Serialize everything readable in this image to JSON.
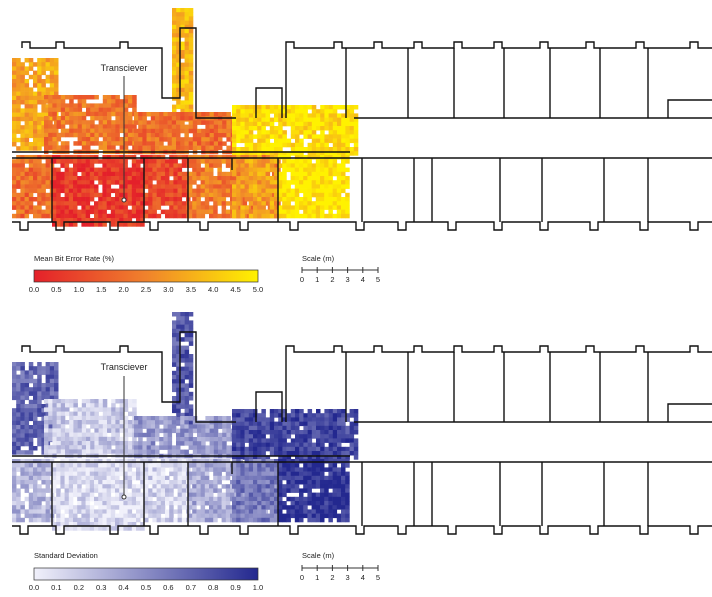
{
  "chart_data": [
    {
      "type": "heatmap",
      "annotation": "Transciever",
      "colorbar": {
        "title": "Mean Bit Error Rate (%)",
        "ticks": [
          "0.0",
          "0.5",
          "1.0",
          "1.5",
          "2.0",
          "2.5",
          "3.0",
          "3.5",
          "4.0",
          "4.5",
          "5.0"
        ],
        "range": [
          0,
          5
        ],
        "colors": [
          "#e4202a",
          "#f0822c",
          "#fff200"
        ]
      },
      "scale": {
        "title": "Scale (m)",
        "ticks": [
          "0",
          "1",
          "2",
          "3",
          "4",
          "5"
        ]
      },
      "regions": [
        {
          "name": "shaft",
          "value": 3.7
        },
        {
          "name": "left-wing-upper",
          "value": 3.3
        },
        {
          "name": "upper-corridor-west",
          "value": 2.2
        },
        {
          "name": "upper-corridor-mid",
          "value": 2.0
        },
        {
          "name": "upper-corridor-east",
          "value": 4.6
        },
        {
          "name": "room-1",
          "value": 1.9
        },
        {
          "name": "room-2",
          "value": 0.6
        },
        {
          "name": "room-3",
          "value": 1.1
        },
        {
          "name": "room-4",
          "value": 2.3
        },
        {
          "name": "room-5",
          "value": 3.2
        },
        {
          "name": "room-6",
          "value": 4.9
        }
      ]
    },
    {
      "type": "heatmap",
      "annotation": "Transciever",
      "colorbar": {
        "title": "Standard Deviation",
        "ticks": [
          "0.0",
          "0.1",
          "0.2",
          "0.3",
          "0.4",
          "0.5",
          "0.6",
          "0.7",
          "0.8",
          "0.9",
          "1.0"
        ],
        "range": [
          0,
          1
        ],
        "colors": [
          "#f1f1fb",
          "#23288f"
        ]
      },
      "scale": {
        "title": "Scale (m)",
        "ticks": [
          "0",
          "1",
          "2",
          "3",
          "4",
          "5"
        ]
      },
      "regions": [
        {
          "name": "shaft",
          "value": 0.75
        },
        {
          "name": "left-wing-upper",
          "value": 0.7
        },
        {
          "name": "upper-corridor-west",
          "value": 0.2
        },
        {
          "name": "upper-corridor-mid",
          "value": 0.45
        },
        {
          "name": "upper-corridor-east",
          "value": 0.85
        },
        {
          "name": "room-1",
          "value": 0.3
        },
        {
          "name": "room-2",
          "value": 0.12
        },
        {
          "name": "room-3",
          "value": 0.15
        },
        {
          "name": "room-4",
          "value": 0.35
        },
        {
          "name": "room-5",
          "value": 0.6
        },
        {
          "name": "room-6",
          "value": 0.95
        }
      ]
    }
  ]
}
